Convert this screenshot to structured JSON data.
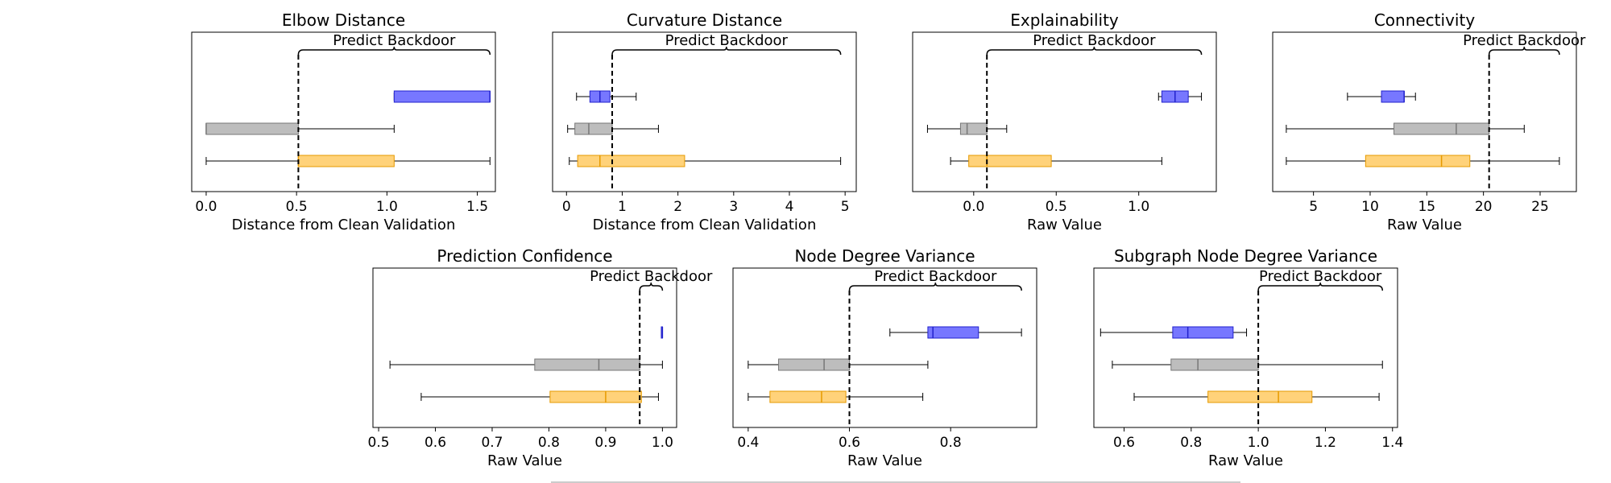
{
  "chart_data": [
    {
      "type": "boxplot",
      "title": "Elbow Distance",
      "xlabel": "Distance from Clean Validation",
      "xlim": [
        -0.08,
        1.6
      ],
      "xticks": [
        0.0,
        0.5,
        1.0,
        1.5
      ],
      "tick_labels": [
        "0.0",
        "0.5",
        "1.0",
        "1.5"
      ],
      "threshold": 0.51,
      "bracket": {
        "label": "Predict Backdoor",
        "from": 0.51,
        "to": 1.57
      },
      "boxes": [
        {
          "color": "#7777ff",
          "edge": "#2222cc",
          "whislo": 1.04,
          "q1": 1.04,
          "med": 1.57,
          "q3": 1.57,
          "whishi": 1.57
        },
        {
          "color": "#bdbdbd",
          "edge": "#777777",
          "whislo": 0.0,
          "q1": 0.0,
          "med": 0.0,
          "q3": 0.51,
          "whishi": 1.04
        },
        {
          "color": "#ffd27a",
          "edge": "#e69a00",
          "whislo": 0.0,
          "q1": 0.51,
          "med": 0.51,
          "q3": 1.04,
          "whishi": 1.57
        }
      ]
    },
    {
      "type": "boxplot",
      "title": "Curvature Distance",
      "xlabel": "Distance from Clean Validation",
      "xlim": [
        -0.25,
        5.2
      ],
      "xticks": [
        0,
        1,
        2,
        3,
        4,
        5
      ],
      "tick_labels": [
        "0",
        "1",
        "2",
        "3",
        "4",
        "5"
      ],
      "threshold": 0.82,
      "bracket": {
        "label": "Predict Backdoor",
        "from": 0.82,
        "to": 4.92
      },
      "boxes": [
        {
          "color": "#7777ff",
          "edge": "#2222cc",
          "whislo": 0.18,
          "q1": 0.42,
          "med": 0.6,
          "q3": 0.78,
          "whishi": 1.25
        },
        {
          "color": "#bdbdbd",
          "edge": "#777777",
          "whislo": 0.02,
          "q1": 0.15,
          "med": 0.4,
          "q3": 0.82,
          "whishi": 1.65
        },
        {
          "color": "#ffd27a",
          "edge": "#e69a00",
          "whislo": 0.05,
          "q1": 0.2,
          "med": 0.6,
          "q3": 2.12,
          "whishi": 4.92
        }
      ]
    },
    {
      "type": "boxplot",
      "title": "Explainability",
      "xlabel": "Raw Value",
      "xlim": [
        -0.37,
        1.47
      ],
      "xticks": [
        0.0,
        0.5,
        1.0
      ],
      "tick_labels": [
        "0.0",
        "0.5",
        "1.0"
      ],
      "threshold": 0.08,
      "bracket": {
        "label": "Predict Backdoor",
        "from": 0.08,
        "to": 1.38
      },
      "boxes": [
        {
          "color": "#7777ff",
          "edge": "#2222cc",
          "whislo": 1.12,
          "q1": 1.14,
          "med": 1.22,
          "q3": 1.3,
          "whishi": 1.38
        },
        {
          "color": "#bdbdbd",
          "edge": "#777777",
          "whislo": -0.28,
          "q1": -0.08,
          "med": -0.04,
          "q3": 0.08,
          "whishi": 0.2
        },
        {
          "color": "#ffd27a",
          "edge": "#e69a00",
          "whislo": -0.14,
          "q1": -0.03,
          "med": 0.08,
          "q3": 0.47,
          "whishi": 1.14
        }
      ]
    },
    {
      "type": "boxplot",
      "title": "Connectivity",
      "xlabel": "Raw Value",
      "xlim": [
        1.4,
        28.2
      ],
      "xticks": [
        5,
        10,
        15,
        20,
        25
      ],
      "tick_labels": [
        "5",
        "10",
        "15",
        "20",
        "25"
      ],
      "threshold": 20.5,
      "bracket": {
        "label": "Predict Backdoor",
        "from": 20.5,
        "to": 26.7
      },
      "boxes": [
        {
          "color": "#7777ff",
          "edge": "#2222cc",
          "whislo": 8.0,
          "q1": 11.0,
          "med": 13.0,
          "q3": 13.0,
          "whishi": 14.0
        },
        {
          "color": "#bdbdbd",
          "edge": "#777777",
          "whislo": 2.6,
          "q1": 12.1,
          "med": 17.6,
          "q3": 20.5,
          "whishi": 23.6
        },
        {
          "color": "#ffd27a",
          "edge": "#e69a00",
          "whislo": 2.6,
          "q1": 9.6,
          "med": 16.3,
          "q3": 18.8,
          "whishi": 26.7
        }
      ]
    },
    {
      "type": "boxplot",
      "title": "Prediction Confidence",
      "xlabel": "Raw Value",
      "xlim": [
        0.49,
        1.025
      ],
      "xticks": [
        0.5,
        0.6,
        0.7,
        0.8,
        0.9,
        1.0
      ],
      "tick_labels": [
        "0.5",
        "0.6",
        "0.7",
        "0.8",
        "0.9",
        "1.0"
      ],
      "threshold": 0.96,
      "bracket": {
        "label": "Predict Backdoor",
        "from": 0.96,
        "to": 1.0
      },
      "boxes": [
        {
          "color": "#7777ff",
          "edge": "#2222cc",
          "whislo": 0.998,
          "q1": 0.998,
          "med": 1.0,
          "q3": 1.0,
          "whishi": 1.0
        },
        {
          "color": "#bdbdbd",
          "edge": "#777777",
          "whislo": 0.52,
          "q1": 0.775,
          "med": 0.888,
          "q3": 0.96,
          "whishi": 1.0
        },
        {
          "color": "#ffd27a",
          "edge": "#e69a00",
          "whislo": 0.575,
          "q1": 0.802,
          "med": 0.9,
          "q3": 0.963,
          "whishi": 0.993
        }
      ]
    },
    {
      "type": "boxplot",
      "title": "Node Degree Variance",
      "xlabel": "Raw Value",
      "xlim": [
        0.37,
        0.97
      ],
      "xticks": [
        0.4,
        0.6,
        0.8
      ],
      "tick_labels": [
        "0.4",
        "0.6",
        "0.8"
      ],
      "threshold": 0.6,
      "bracket": {
        "label": "Predict Backdoor",
        "from": 0.6,
        "to": 0.94
      },
      "boxes": [
        {
          "color": "#7777ff",
          "edge": "#2222cc",
          "whislo": 0.68,
          "q1": 0.755,
          "med": 0.765,
          "q3": 0.855,
          "whishi": 0.94
        },
        {
          "color": "#bdbdbd",
          "edge": "#777777",
          "whislo": 0.4,
          "q1": 0.46,
          "med": 0.55,
          "q3": 0.6,
          "whishi": 0.755
        },
        {
          "color": "#ffd27a",
          "edge": "#e69a00",
          "whislo": 0.4,
          "q1": 0.443,
          "med": 0.545,
          "q3": 0.593,
          "whishi": 0.745
        }
      ]
    },
    {
      "type": "boxplot",
      "title": "Subgraph Node Degree Variance",
      "xlabel": "Raw Value",
      "xlim": [
        0.51,
        1.415
      ],
      "xticks": [
        0.6,
        0.8,
        1.0,
        1.2,
        1.4
      ],
      "tick_labels": [
        "0.6",
        "0.8",
        "1.0",
        "1.2",
        "1.4"
      ],
      "threshold": 1.0,
      "bracket": {
        "label": "Predict Backdoor",
        "from": 1.0,
        "to": 1.37
      },
      "boxes": [
        {
          "color": "#7777ff",
          "edge": "#2222cc",
          "whislo": 0.53,
          "q1": 0.745,
          "med": 0.79,
          "q3": 0.925,
          "whishi": 0.965
        },
        {
          "color": "#bdbdbd",
          "edge": "#777777",
          "whislo": 0.565,
          "q1": 0.74,
          "med": 0.82,
          "q3": 1.0,
          "whishi": 1.37
        },
        {
          "color": "#ffd27a",
          "edge": "#e69a00",
          "whislo": 0.63,
          "q1": 0.85,
          "med": 1.06,
          "q3": 1.16,
          "whishi": 1.36
        }
      ]
    }
  ]
}
